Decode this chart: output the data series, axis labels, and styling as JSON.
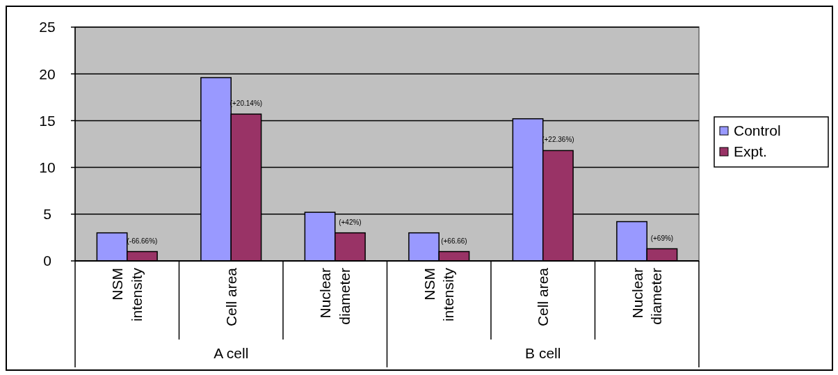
{
  "chart_data": {
    "type": "bar",
    "categories": [
      "NSM intensity",
      "Cell area",
      "Nuclear diameter",
      "NSM intensity",
      "Cell area",
      "Nuclear diameter"
    ],
    "series": [
      {
        "name": "Control",
        "color": "#9999ff",
        "values": [
          3,
          19.6,
          5.2,
          3,
          15.2,
          4.2
        ]
      },
      {
        "name": "Expt.",
        "color": "#993366",
        "values": [
          1,
          15.7,
          3,
          1,
          11.8,
          1.3
        ]
      }
    ],
    "ylim": [
      0,
      25
    ],
    "yticks": [
      0,
      5,
      10,
      15,
      20,
      25
    ],
    "grid": "y",
    "legend": "right",
    "annotations": [
      "(-66.66%)",
      "(+20.14%)",
      "(+42%)",
      "(+66.66)",
      "(+22.36%)",
      "(+69%)",
      "A cell",
      "B cell"
    ]
  }
}
